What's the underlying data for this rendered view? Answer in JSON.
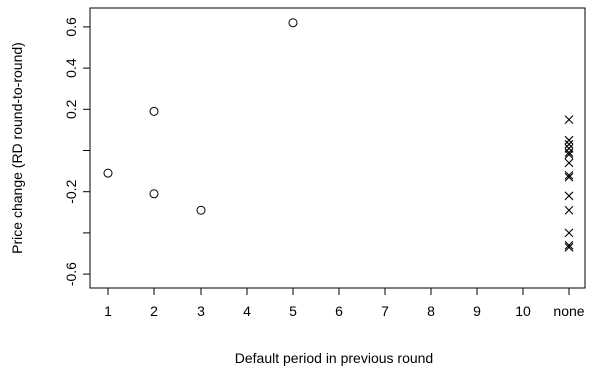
{
  "chart_data": {
    "type": "scatter",
    "title": "",
    "xlabel": "Default period in previous round",
    "ylabel": "Price change (RD round-to-round)",
    "x_categories": [
      "1",
      "2",
      "3",
      "4",
      "5",
      "6",
      "7",
      "8",
      "9",
      "10",
      "none"
    ],
    "y_ticks": [
      -0.6,
      -0.2,
      0.2,
      0.6
    ],
    "y_tick_labels": [
      "-0.6",
      "-0.2",
      "0.2",
      "0.6"
    ],
    "y_ticks_minor": [
      -0.4,
      0,
      0.4
    ],
    "y_tick_labels_minor": [
      "",
      "",
      "0.4"
    ],
    "ylim": [
      -0.66,
      0.66
    ],
    "grid": false,
    "series": [
      {
        "marker": "circle",
        "points": [
          {
            "x": "1",
            "y": -0.11
          },
          {
            "x": "2",
            "y": 0.19
          },
          {
            "x": "2",
            "y": -0.21
          },
          {
            "x": "3",
            "y": -0.29
          },
          {
            "x": "5",
            "y": 0.62
          }
        ]
      },
      {
        "marker": "cross",
        "points": [
          {
            "x": "none",
            "y": 0.15
          },
          {
            "x": "none",
            "y": 0.05
          },
          {
            "x": "none",
            "y": 0.03
          },
          {
            "x": "none",
            "y": 0.01
          },
          {
            "x": "none",
            "y": -0.01
          },
          {
            "x": "none",
            "y": -0.02
          },
          {
            "x": "none",
            "y": -0.06
          },
          {
            "x": "none",
            "y": -0.12
          },
          {
            "x": "none",
            "y": -0.13
          },
          {
            "x": "none",
            "y": -0.22
          },
          {
            "x": "none",
            "y": -0.29
          },
          {
            "x": "none",
            "y": -0.4
          },
          {
            "x": "none",
            "y": -0.46
          },
          {
            "x": "none",
            "y": -0.47
          }
        ]
      }
    ]
  }
}
